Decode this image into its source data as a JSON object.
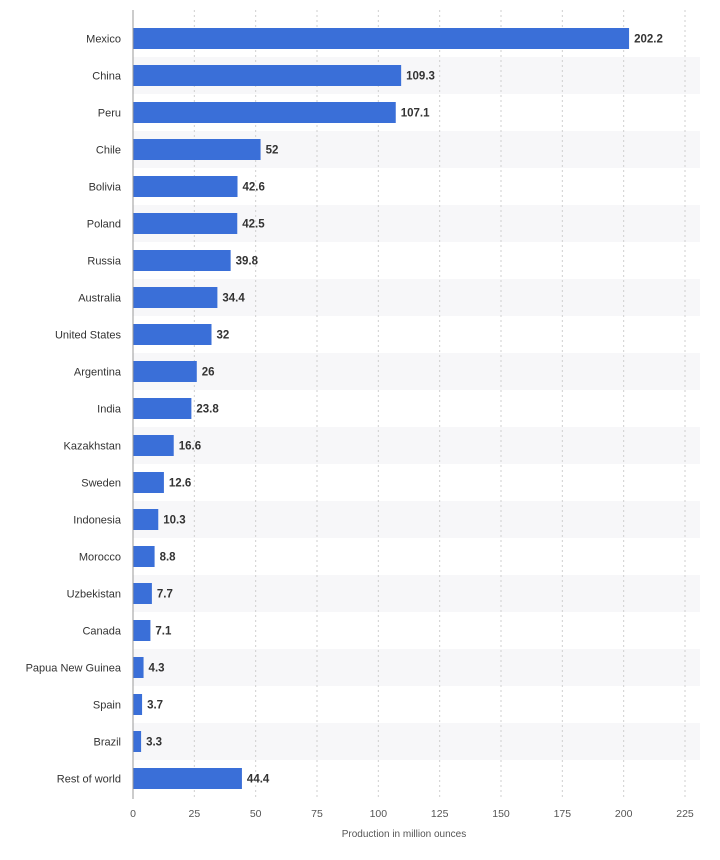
{
  "chart_data": {
    "type": "bar",
    "orientation": "horizontal",
    "categories": [
      "Mexico",
      "China",
      "Peru",
      "Chile",
      "Bolivia",
      "Poland",
      "Russia",
      "Australia",
      "United States",
      "Argentina",
      "India",
      "Kazakhstan",
      "Sweden",
      "Indonesia",
      "Morocco",
      "Uzbekistan",
      "Canada",
      "Papua New Guinea",
      "Spain",
      "Brazil",
      "Rest of world"
    ],
    "values": [
      202.2,
      109.3,
      107.1,
      52,
      42.6,
      42.5,
      39.8,
      34.4,
      32,
      26,
      23.8,
      16.6,
      12.6,
      10.3,
      8.8,
      7.7,
      7.1,
      4.3,
      3.7,
      3.3,
      44.4
    ],
    "value_labels": [
      "202.2",
      "109.3",
      "107.1",
      "52",
      "42.6",
      "42.5",
      "39.8",
      "34.4",
      "32",
      "26",
      "23.8",
      "16.6",
      "12.6",
      "10.3",
      "8.8",
      "7.7",
      "7.1",
      "4.3",
      "3.7",
      "3.3",
      "44.4"
    ],
    "xlabel": "Production in million ounces",
    "ylabel": "",
    "xlim": [
      0,
      225
    ],
    "xticks": [
      "0",
      "25",
      "50",
      "75",
      "100",
      "125",
      "150",
      "175",
      "200",
      "225"
    ],
    "grid": true,
    "bar_color": "#3a6fd8"
  }
}
